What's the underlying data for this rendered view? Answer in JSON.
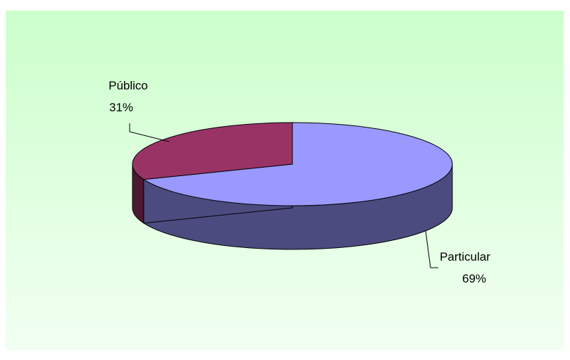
{
  "chart_data": {
    "type": "pie",
    "title": "",
    "three_d": true,
    "slices": [
      {
        "label": "Particular",
        "percent_label": "69%",
        "value": 69,
        "color": "#9999ff",
        "side_color": "#4b4b7f"
      },
      {
        "label": "Público",
        "percent_label": "31%",
        "value": 31,
        "color": "#993366",
        "side_color": "#4c1933"
      }
    ],
    "background_gradient": [
      "#ccffcc",
      "#f2fff2"
    ]
  }
}
